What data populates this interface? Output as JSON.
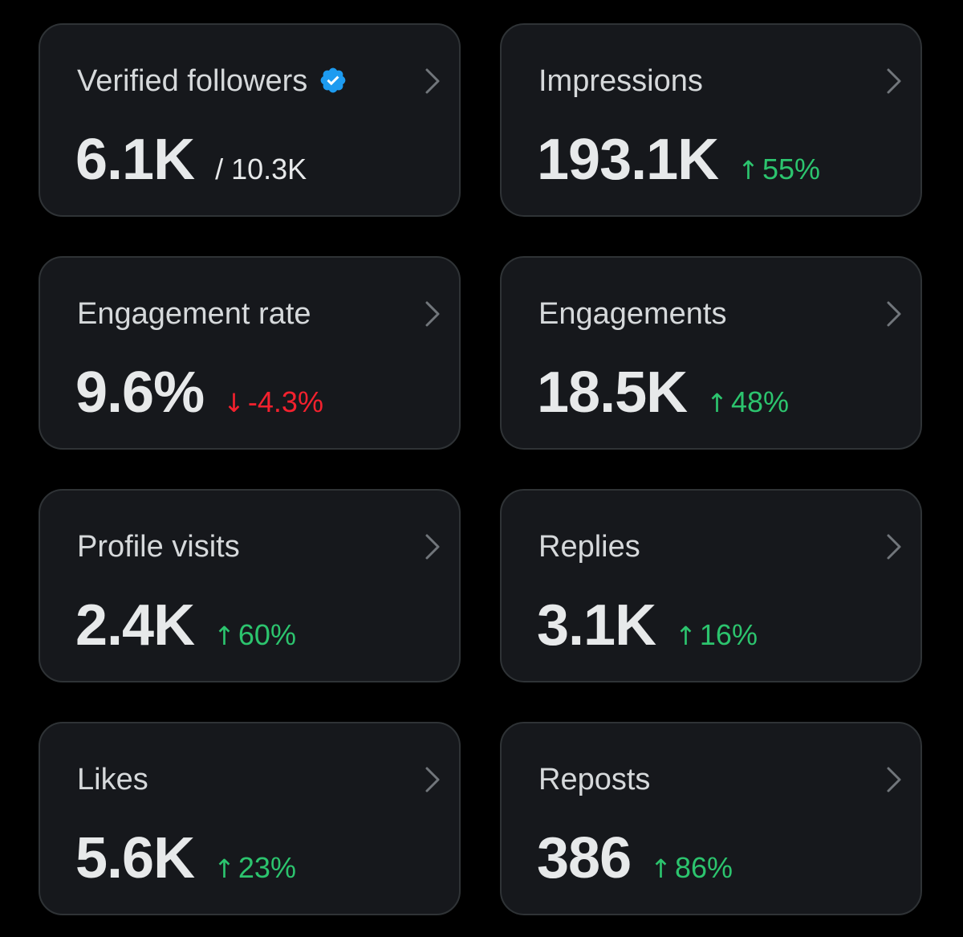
{
  "colors": {
    "background": "#000000",
    "card": "#16181c",
    "card_border": "#2f3336",
    "positive": "#2cc46e",
    "negative": "#f4212e",
    "verified_badge": "#1d9bf0"
  },
  "cards": [
    {
      "title": "Verified followers",
      "value": "6.1K",
      "total": "/ 10.3K",
      "icon": "verified-badge-icon"
    },
    {
      "title": "Impressions",
      "value": "193.1K",
      "delta": {
        "direction": "up",
        "arrow": "↑",
        "text": "55%"
      }
    },
    {
      "title": "Engagement rate",
      "value": "9.6%",
      "delta": {
        "direction": "down",
        "arrow": "↓",
        "text": "-4.3%"
      }
    },
    {
      "title": "Engagements",
      "value": "18.5K",
      "delta": {
        "direction": "up",
        "arrow": "↑",
        "text": "48%"
      }
    },
    {
      "title": "Profile visits",
      "value": "2.4K",
      "delta": {
        "direction": "up",
        "arrow": "↑",
        "text": "60%"
      }
    },
    {
      "title": "Replies",
      "value": "3.1K",
      "delta": {
        "direction": "up",
        "arrow": "↑",
        "text": "16%"
      }
    },
    {
      "title": "Likes",
      "value": "5.6K",
      "delta": {
        "direction": "up",
        "arrow": "↑",
        "text": "23%"
      }
    },
    {
      "title": "Reposts",
      "value": "386",
      "delta": {
        "direction": "up",
        "arrow": "↑",
        "text": "86%"
      }
    }
  ]
}
